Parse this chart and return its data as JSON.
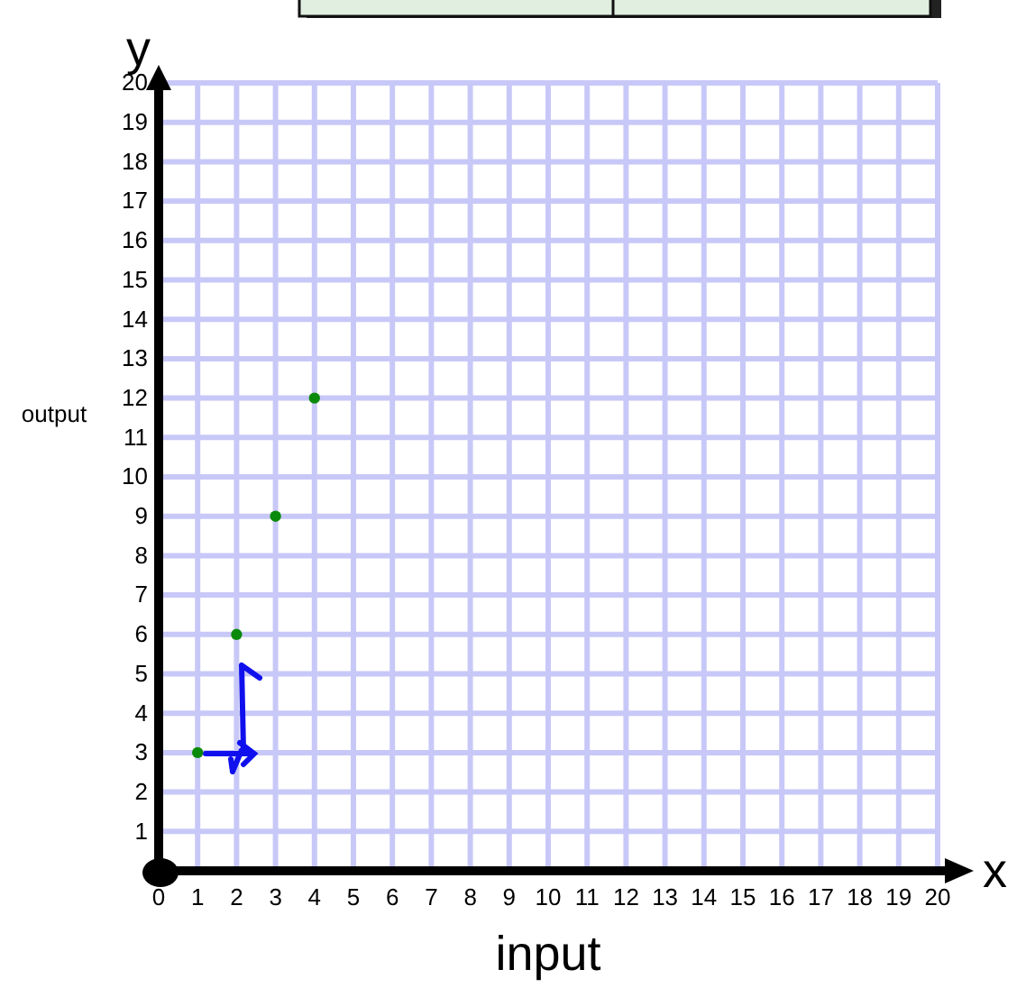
{
  "chart_data": {
    "type": "scatter",
    "xlabel": "input",
    "ylabel": "output",
    "annotations": [
      "x",
      "y"
    ],
    "x": [
      1,
      2,
      3,
      4
    ],
    "series": [
      {
        "color": "#0a8a0a",
        "values": [
          3,
          6,
          9,
          12
        ]
      }
    ],
    "xlim": [
      0,
      20
    ],
    "ylim": [
      0,
      20
    ],
    "xticks": [
      0,
      1,
      2,
      3,
      4,
      5,
      6,
      7,
      8,
      9,
      10,
      11,
      12,
      13,
      14,
      15,
      16,
      17,
      18,
      19,
      20
    ],
    "yticks": [
      {
        "value": 0,
        "label": null
      },
      1,
      2,
      3,
      4,
      5,
      6,
      7,
      8,
      9,
      10,
      11,
      12,
      13,
      14,
      15,
      16,
      17,
      18,
      19,
      20
    ],
    "grid": true,
    "marker": "circle"
  }
}
